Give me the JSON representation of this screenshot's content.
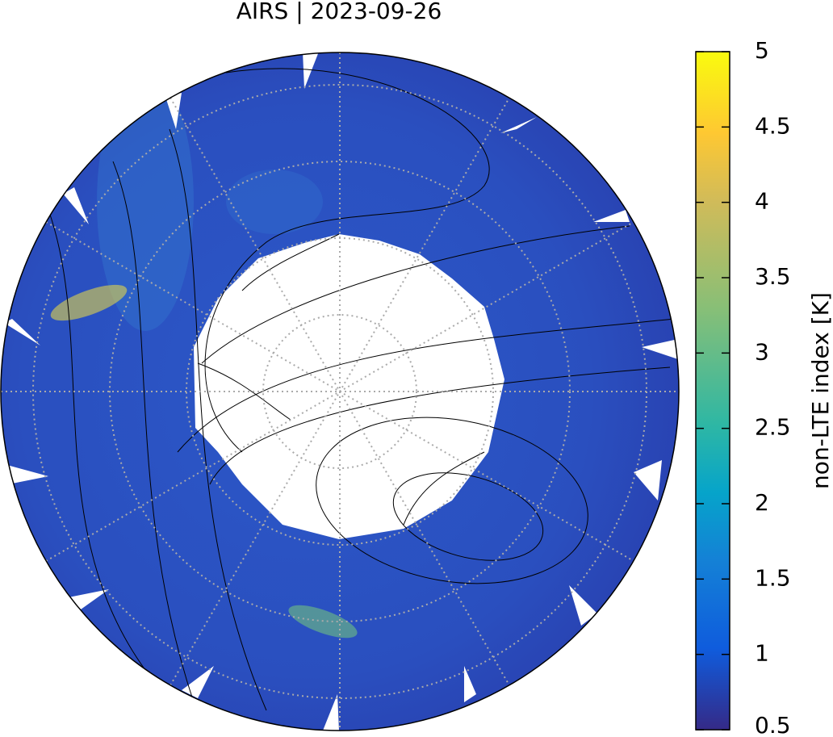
{
  "title": "AIRS | 2023-09-26",
  "colorbar": {
    "label": "non-LTE index [K]",
    "lim": [
      0.5,
      5
    ],
    "ticks": [
      0.5,
      1,
      1.5,
      2,
      2.5,
      3,
      3.5,
      4,
      4.5,
      5
    ]
  }
}
